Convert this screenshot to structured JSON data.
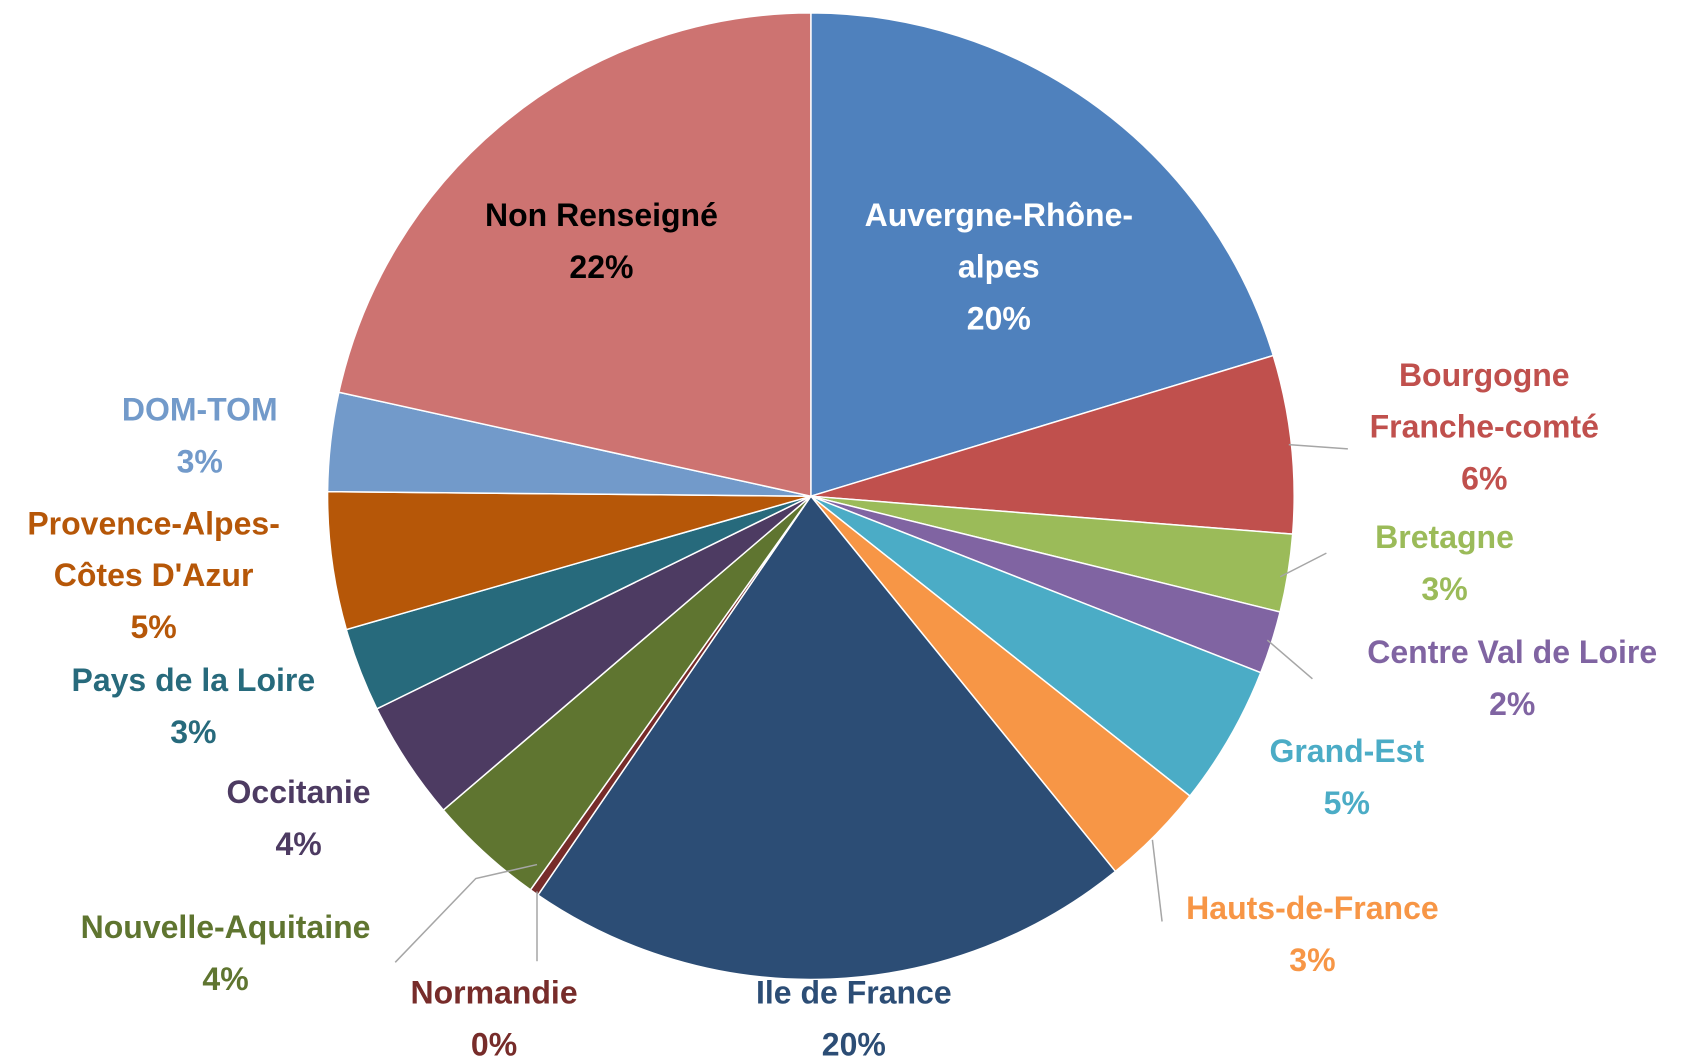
{
  "chart_data": {
    "type": "pie",
    "categories": [
      "Auvergne-Rhône-\nalpes",
      "Bourgogne\nFranche-comté",
      "Bretagne",
      "Centre Val de Loire",
      "Grand-Est",
      "Hauts-de-France",
      "Ile de France",
      "Normandie",
      "Nouvelle-Aquitaine",
      "Occitanie",
      "Pays de la Loire",
      "Provence-Alpes-\nCôtes D'Azur",
      "DOM-TOM",
      "Non Renseigné"
    ],
    "values": [
      20.3,
      5.95,
      2.6,
      2.1,
      4.7,
      3.5,
      20.4,
      0.3,
      3.9,
      4.0,
      2.8,
      4.6,
      3.3,
      21.55
    ],
    "value_labels": [
      "20%",
      "6%",
      "3%",
      "2%",
      "5%",
      "3%",
      "20%",
      "0%",
      "4%",
      "4%",
      "3%",
      "5%",
      "3%",
      "22%"
    ],
    "colors": [
      "#4f81bd",
      "#c0504d",
      "#9bbb59",
      "#8064a2",
      "#4bacc6",
      "#f79646",
      "#2c4d75",
      "#772c2a",
      "#5f7530",
      "#4d3b62",
      "#276a7c",
      "#b65708",
      "#729aca",
      "#cd7371"
    ]
  }
}
